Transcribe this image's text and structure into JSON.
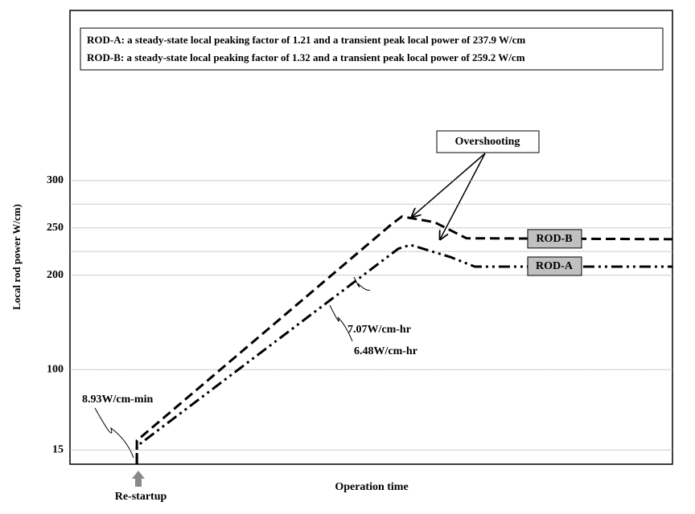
{
  "chart_data": {
    "type": "line",
    "y_label": "Local rod power W/cm)",
    "x_label": "Operation time",
    "legend_lines": [
      "ROD-A: a steady-state local peaking factor of 1.21 and a transient peak local power of 237.9 W/cm",
      "ROD-B: a steady-state local peaking factor of 1.32 and a transient peak local power of 259.2 W/cm"
    ],
    "annotations": [
      "Overshooting",
      "7.07W/cm-hr",
      "6.48W/cm-hr",
      "8.93W/cm-min",
      "Re-startup"
    ],
    "xlim": [
      0,
      100
    ],
    "ylim": [
      0,
      480
    ],
    "yticks": [
      15,
      100,
      200,
      250,
      300
    ],
    "unlabeled_gridlines": [
      225,
      275
    ],
    "grid": true,
    "series": [
      {
        "name": "ROD-B",
        "color": "#000000",
        "dash": "12 6",
        "x": [
          11.1,
          11.1,
          53.4,
          55.1,
          60.5,
          65.8,
          100
        ],
        "values": [
          0,
          25,
          254,
          262,
          256,
          239,
          238
        ]
      },
      {
        "name": "ROD-A",
        "color": "#000000",
        "dash": "14 5 3 5 3 5",
        "x": [
          11.1,
          11.1,
          54.5,
          56.5,
          63.2,
          67.2,
          100
        ],
        "values": [
          0,
          19,
          228,
          232,
          219,
          209,
          209
        ]
      }
    ]
  }
}
